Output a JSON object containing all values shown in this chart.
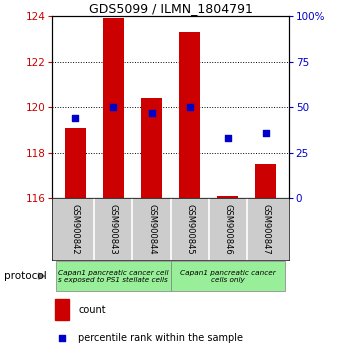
{
  "title": "GDS5099 / ILMN_1804791",
  "samples": [
    "GSM900842",
    "GSM900843",
    "GSM900844",
    "GSM900845",
    "GSM900846",
    "GSM900847"
  ],
  "bar_values": [
    119.1,
    123.9,
    120.4,
    123.3,
    116.1,
    117.5
  ],
  "bar_base": 116.0,
  "percentile_values": [
    44,
    50,
    47,
    50,
    33,
    36
  ],
  "ylim_left": [
    116,
    124
  ],
  "ylim_right": [
    0,
    100
  ],
  "yticks_left": [
    116,
    118,
    120,
    122,
    124
  ],
  "yticks_right": [
    0,
    25,
    50,
    75,
    100
  ],
  "bar_color": "#cc0000",
  "dot_color": "#0000cc",
  "bar_width": 0.55,
  "group1_label": "Capan1 pancreatic cancer cell\ns exposed to PS1 stellate cells",
  "group2_label": "Capan1 pancreatic cancer\ncells only",
  "group1_indices": [
    0,
    1,
    2
  ],
  "group2_indices": [
    3,
    4,
    5
  ],
  "group_color": "#99ee99",
  "sample_box_color": "#cccccc",
  "protocol_label": "protocol",
  "legend_count_label": "count",
  "legend_percentile_label": "percentile rank within the sample",
  "background_color": "#ffffff",
  "tick_color_left": "#cc0000",
  "tick_color_right": "#0000cc",
  "title_fontsize": 9,
  "tick_fontsize": 7.5,
  "sample_fontsize": 6,
  "legend_fontsize": 7
}
